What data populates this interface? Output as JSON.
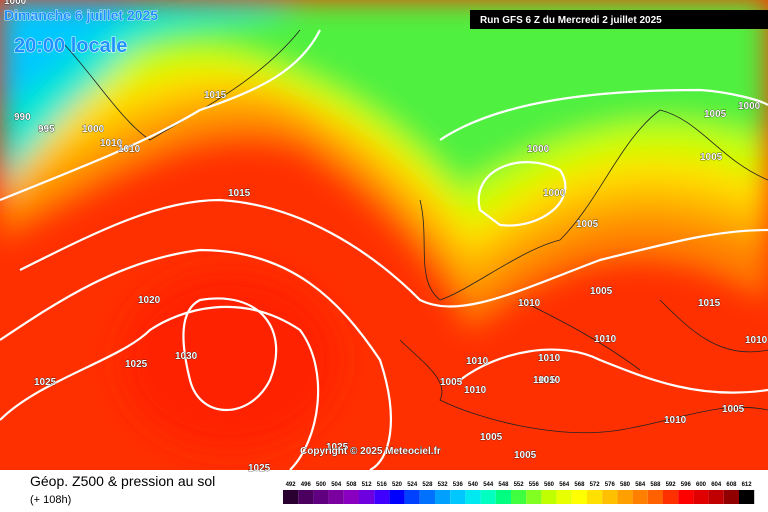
{
  "header": {
    "date": "Dimanche 6 juillet 2025",
    "time": "20:00 locale",
    "run": "Run GFS 6 Z du Mercredi 2 juillet 2025"
  },
  "copyright": "Copyright © 2025 Meteociel.fr",
  "footer": {
    "title": "Géop. Z500 & pression au sol",
    "lead": "(+ 108h)"
  },
  "scale": [
    "492",
    "496",
    "500",
    "504",
    "508",
    "512",
    "516",
    "520",
    "524",
    "528",
    "532",
    "536",
    "540",
    "544",
    "548",
    "552",
    "556",
    "560",
    "564",
    "568",
    "572",
    "576",
    "580",
    "584",
    "588",
    "592",
    "596",
    "600",
    "604",
    "608",
    "612"
  ],
  "isobars": [
    "1000",
    "990",
    "995",
    "1000",
    "1015",
    "1010",
    "1010",
    "1015",
    "1020",
    "1025",
    "1030",
    "1025",
    "1025",
    "1025",
    "1000",
    "1005",
    "1000",
    "1005",
    "1000",
    "1005",
    "1010",
    "1005",
    "1010",
    "1015",
    "1010",
    "1005",
    "1010",
    "1010",
    "1005",
    "1010",
    "1010",
    "1005",
    "1005",
    "1005",
    "1010"
  ]
}
